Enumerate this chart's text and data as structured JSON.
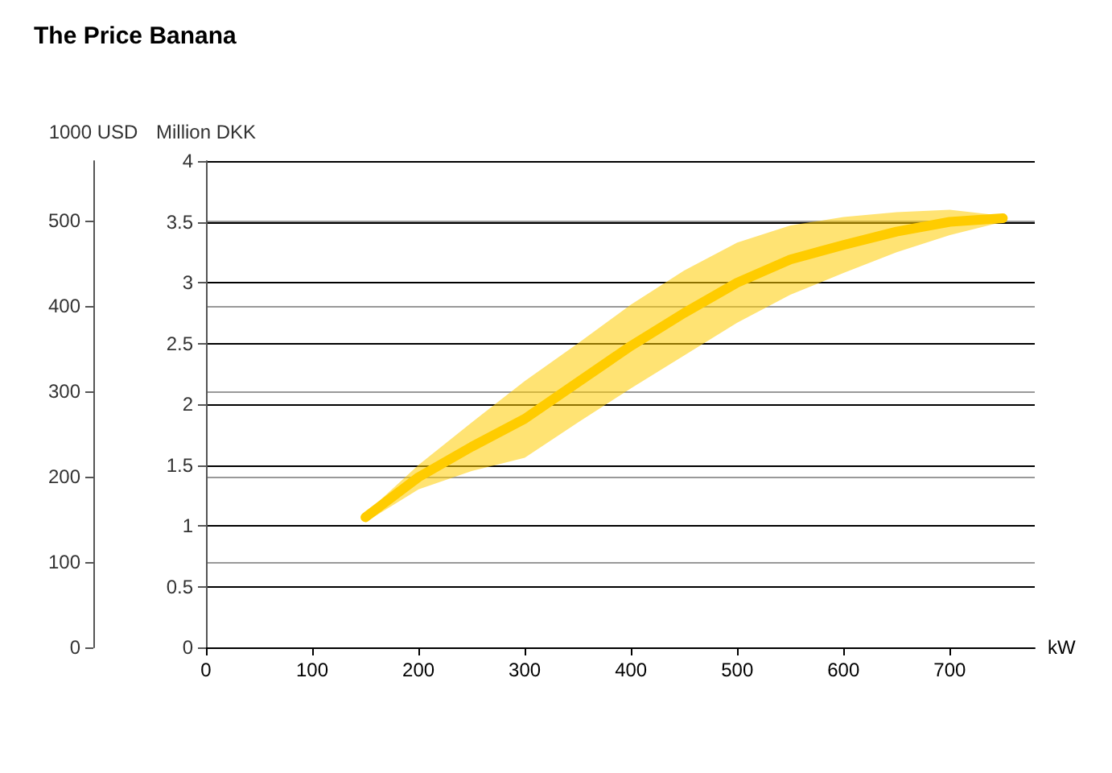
{
  "chart_data": {
    "type": "line",
    "title": "The Price Banana",
    "xlabel": "kW",
    "ylabel": "Million DKK",
    "y2label": "1000 USD",
    "x": [
      150,
      200,
      250,
      300,
      350,
      400,
      450,
      500,
      550,
      600,
      650,
      700,
      750
    ],
    "series": [
      {
        "type": "line",
        "color": "#ffcc00",
        "values": [
          1.07,
          1.4,
          1.65,
          1.88,
          2.18,
          2.48,
          2.75,
          3,
          3.19,
          3.31,
          3.42,
          3.5,
          3.53
        ],
        "lower": [
          1.03,
          1.3,
          1.45,
          1.56,
          1.85,
          2.13,
          2.4,
          2.67,
          2.9,
          3.08,
          3.25,
          3.39,
          3.5
        ],
        "upper": [
          1.1,
          1.5,
          1.85,
          2.19,
          2.5,
          2.82,
          3.1,
          3.33,
          3.47,
          3.54,
          3.58,
          3.6,
          3.55
        ]
      }
    ],
    "xlim": [
      0,
      780
    ],
    "xticks": [
      0,
      100,
      200,
      300,
      400,
      500,
      600,
      700
    ],
    "ylim": [
      0,
      4
    ],
    "yticks": [
      0,
      0.5,
      1,
      1.5,
      2,
      2.5,
      3,
      3.5,
      4
    ],
    "y2lim": [
      0,
      570
    ],
    "y2ticks": [
      0,
      100,
      200,
      300,
      400,
      500
    ],
    "grid": "y"
  }
}
